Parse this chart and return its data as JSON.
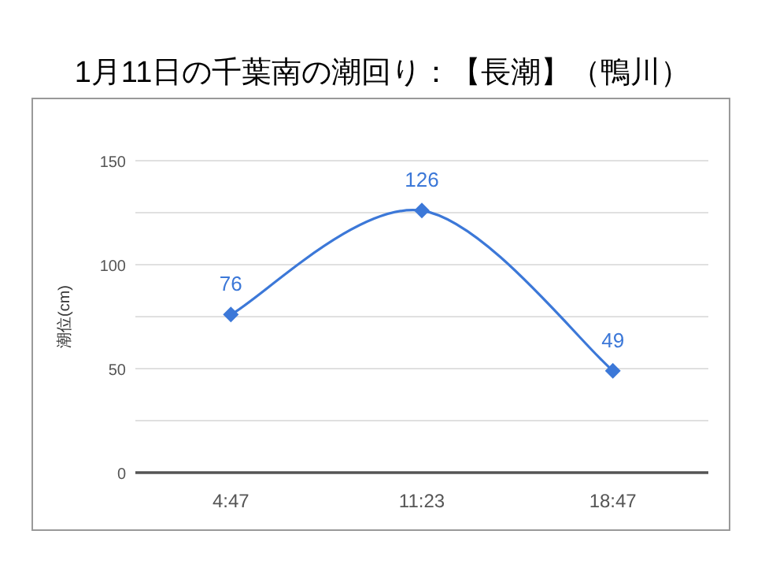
{
  "chart_data": {
    "type": "line",
    "title": "1月11日の千葉南の潮回り：【長潮】（鴨川）",
    "ylabel": "潮位(cm)",
    "categories": [
      "4:47",
      "11:23",
      "18:47"
    ],
    "series": [
      {
        "color": "#3c78d8",
        "values": [
          76,
          126,
          49
        ]
      }
    ],
    "ylim": [
      0,
      150
    ],
    "yticks": [
      0,
      {
        "value": 25,
        "label": null
      },
      50,
      {
        "value": 75,
        "label": null
      },
      100,
      {
        "value": 125,
        "label": null
      },
      150
    ],
    "grid": "y",
    "marker": "diamond",
    "line_style": "solid",
    "data_labels": true
  }
}
